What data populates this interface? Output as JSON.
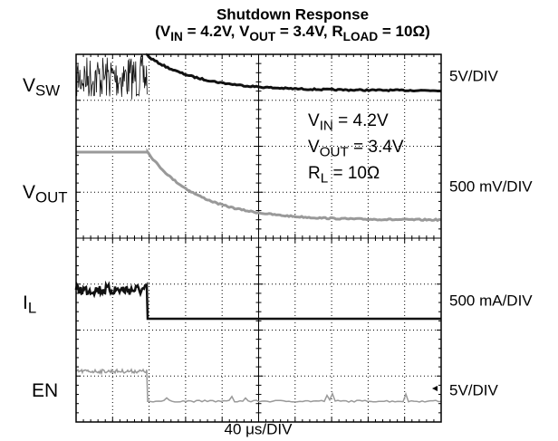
{
  "chart_data": {
    "type": "scope",
    "title": "Shutdown Response",
    "subtitle": [
      "(V",
      "IN",
      " = 4.2V, V",
      "OUT",
      " = 3.4V, R",
      "LOAD",
      " = 10Ω)"
    ],
    "channels": [
      {
        "name": [
          "V",
          "SW"
        ],
        "scale": "5V/DIV"
      },
      {
        "name": [
          "V",
          "OUT"
        ],
        "scale": "500 mV/DIV"
      },
      {
        "name": [
          "I",
          "L"
        ],
        "scale": "500 mA/DIV"
      },
      {
        "name": [
          "EN"
        ],
        "scale": "5V/DIV"
      }
    ],
    "time_scale": "40 μs/DIV",
    "annotations": [
      [
        "V",
        "IN",
        " = 4.2V"
      ],
      [
        "V",
        "OUT",
        " = 3.4V"
      ],
      [
        "R",
        "L",
        " = 10Ω"
      ]
    ]
  }
}
